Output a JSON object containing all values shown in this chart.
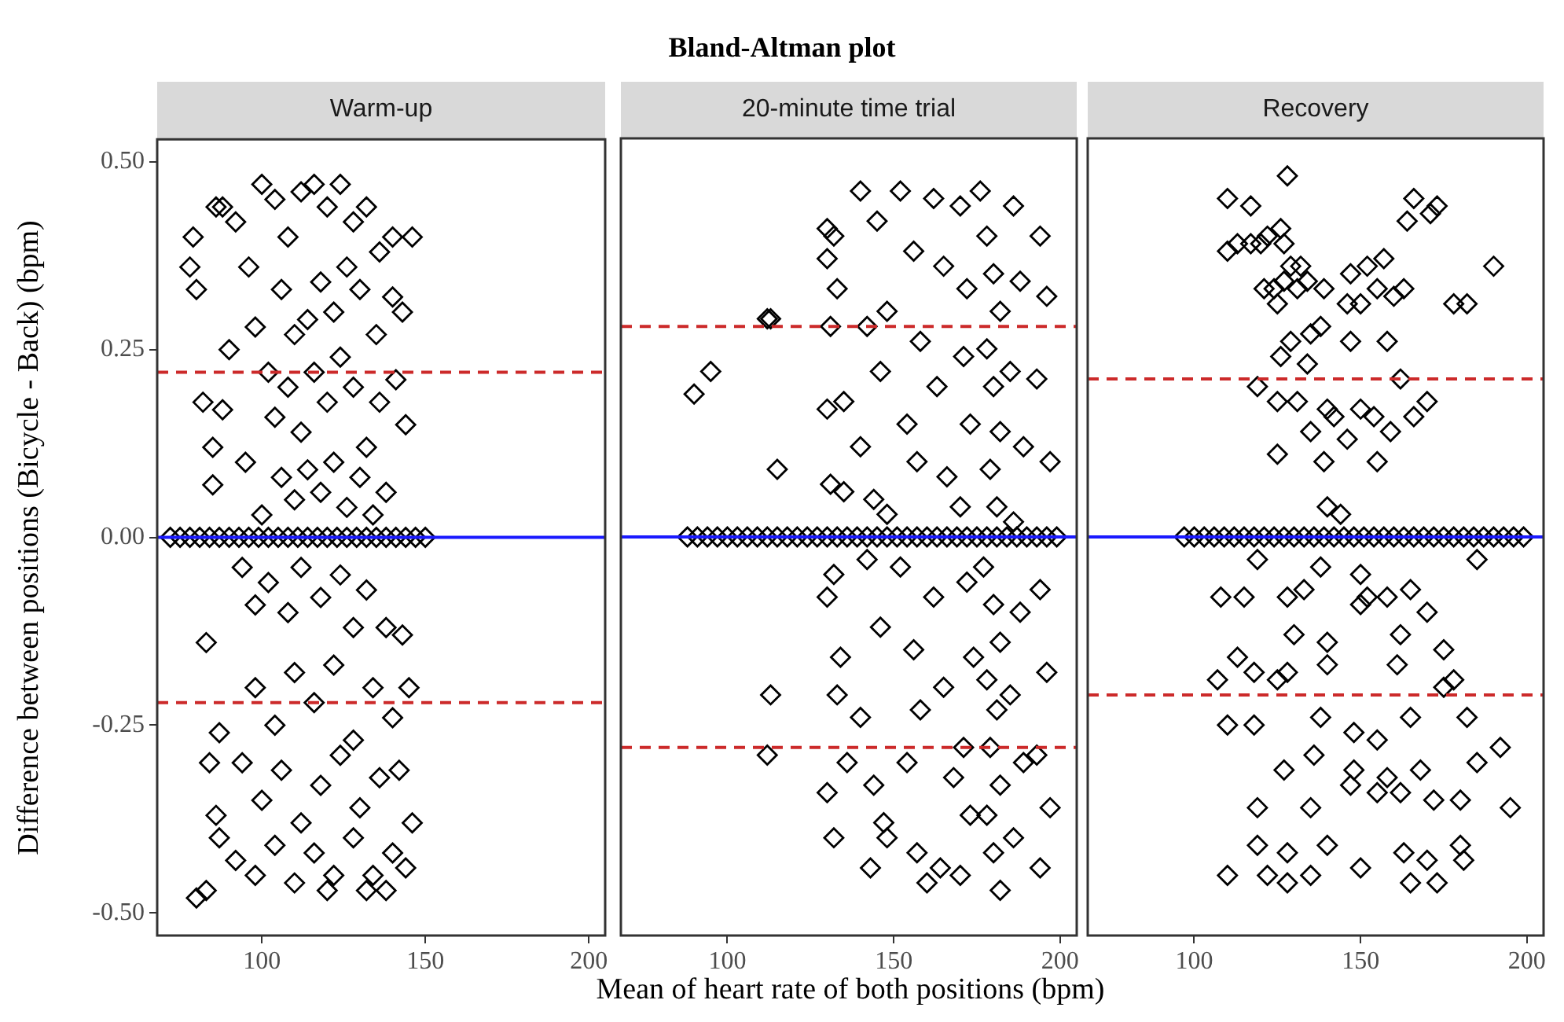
{
  "chart_data": [
    {
      "type": "scatter",
      "subtitle": "Warm-up",
      "ylabel": "Difference between positions (Bicycle - Back) (bpm)",
      "marker": "diamond",
      "xlim": [
        68,
        205
      ],
      "xticks": [
        100,
        150,
        200
      ],
      "ylim": [
        -0.53,
        0.53
      ],
      "yticks": [
        {
          "value": -0.5,
          "label": "-0.50"
        },
        {
          "value": -0.25,
          "label": "-0.25"
        },
        {
          "value": 0,
          "label": "0.00"
        },
        {
          "value": 0.25,
          "label": "0.25"
        },
        {
          "value": 0.5,
          "label": "0.50"
        }
      ],
      "ref_lines": [
        {
          "axis": "y",
          "value": 0.22,
          "color": "#cc2a2a",
          "line_style": "dashed"
        },
        {
          "axis": "y",
          "value": -0.22,
          "color": "#cc2a2a",
          "line_style": "dashed"
        },
        {
          "axis": "y",
          "value": 0,
          "color": "#1a1aff",
          "line_style": "solid"
        }
      ],
      "series": [
        {
          "color": "#000000",
          "x": [
            72,
            75,
            78,
            81,
            84,
            87,
            90,
            93,
            96,
            99,
            102,
            105,
            108,
            111,
            114,
            117,
            120,
            123,
            126,
            129,
            132,
            135,
            138,
            141,
            144,
            147,
            150
          ],
          "values": [
            0,
            0,
            0,
            0,
            0,
            0,
            0,
            0,
            0,
            0,
            0,
            0,
            0,
            0,
            0,
            0,
            0,
            0,
            0,
            0,
            0,
            0,
            0,
            0,
            0,
            0,
            0
          ]
        },
        {
          "color": "#000000",
          "x": [
            80,
            83,
            78,
            80,
            79,
            86,
            88,
            82,
            85,
            83,
            87,
            86,
            84,
            87,
            85,
            90,
            88,
            95,
            92,
            96,
            100,
            104,
            108,
            112,
            116,
            120,
            124,
            128,
            132,
            136,
            140,
            146,
            143,
            140,
            144,
            141,
            135,
            130,
            126,
            122,
            118,
            114,
            110,
            106,
            102,
            98,
            104,
            108,
            112,
            116,
            120,
            124,
            128,
            132,
            136,
            130,
            126,
            122,
            118,
            114,
            110,
            106,
            100,
            138,
            134,
            94,
            98,
            102,
            108,
            112,
            118,
            124,
            128,
            132,
            138,
            143,
            145,
            140,
            134,
            128,
            122,
            116,
            110,
            104,
            98,
            94,
            100,
            106,
            112,
            118,
            124,
            130,
            136,
            142,
            146,
            140,
            134,
            128,
            122,
            116,
            110,
            104,
            98,
            92,
            120,
            132,
            138,
            144
          ],
          "values": [
            -0.48,
            -0.47,
            0.36,
            0.33,
            0.4,
            0.44,
            0.44,
            0.18,
            0.12,
            -0.14,
            -0.4,
            -0.37,
            -0.3,
            -0.26,
            0.07,
            0.25,
            0.17,
            0.1,
            0.42,
            0.36,
            0.47,
            0.45,
            0.4,
            0.46,
            0.47,
            0.44,
            0.47,
            0.42,
            0.44,
            0.38,
            0.4,
            0.4,
            0.3,
            0.32,
            0.15,
            0.21,
            0.27,
            0.33,
            0.36,
            0.3,
            0.34,
            0.29,
            0.27,
            0.33,
            0.22,
            0.28,
            0.16,
            0.2,
            0.14,
            0.22,
            0.18,
            0.24,
            0.2,
            0.12,
            0.18,
            0.08,
            0.04,
            0.1,
            0.06,
            0.09,
            0.05,
            0.08,
            0.03,
            0.06,
            0.03,
            -0.04,
            -0.09,
            -0.06,
            -0.1,
            -0.04,
            -0.08,
            -0.05,
            -0.12,
            -0.07,
            -0.12,
            -0.13,
            -0.2,
            -0.24,
            -0.2,
            -0.27,
            -0.17,
            -0.22,
            -0.18,
            -0.25,
            -0.2,
            -0.3,
            -0.35,
            -0.31,
            -0.38,
            -0.33,
            -0.29,
            -0.36,
            -0.32,
            -0.31,
            -0.38,
            -0.42,
            -0.45,
            -0.4,
            -0.45,
            -0.42,
            -0.46,
            -0.41,
            -0.45,
            -0.43,
            -0.47,
            -0.47,
            -0.47,
            -0.44
          ]
        }
      ]
    },
    {
      "type": "scatter",
      "title": "Bland-Altman plot",
      "subtitle": "20-minute time trial",
      "xlabel": "Mean of heart rate of both positions (bpm)",
      "marker": "diamond",
      "tick_labels": "x",
      "xlim": [
        68,
        205
      ],
      "xticks": [
        100,
        150,
        200
      ],
      "ylim": [
        -0.53,
        0.53
      ],
      "ref_lines": [
        {
          "axis": "y",
          "value": 0.28,
          "color": "#cc2a2a",
          "line_style": "dashed"
        },
        {
          "axis": "y",
          "value": -0.28,
          "color": "#cc2a2a",
          "line_style": "dashed"
        },
        {
          "axis": "y",
          "value": 0,
          "color": "#1a1aff",
          "line_style": "solid"
        }
      ],
      "series": [
        {
          "color": "#000000",
          "x": [
            88,
            91,
            94,
            97,
            100,
            103,
            106,
            109,
            112,
            115,
            118,
            121,
            124,
            127,
            130,
            133,
            136,
            139,
            142,
            145,
            148,
            151,
            154,
            157,
            160,
            163,
            166,
            169,
            172,
            175,
            178,
            181,
            184,
            187,
            190,
            193,
            196,
            199
          ],
          "values": [
            0,
            0,
            0,
            0,
            0,
            0,
            0,
            0,
            0,
            0,
            0,
            0,
            0,
            0,
            0,
            0,
            0,
            0,
            0,
            0,
            0,
            0,
            0,
            0,
            0,
            0,
            0,
            0,
            0,
            0,
            0,
            0,
            0,
            0,
            0,
            0,
            0,
            0
          ]
        },
        {
          "color": "#000000",
          "x": [
            90,
            95,
            112,
            113,
            115,
            113,
            112,
            130,
            132,
            130,
            133,
            131,
            135,
            130,
            131,
            135,
            132,
            130,
            134,
            133,
            130,
            132,
            136,
            140,
            145,
            148,
            142,
            146,
            140,
            144,
            148,
            142,
            146,
            140,
            144,
            148,
            143,
            147,
            152,
            156,
            158,
            154,
            157,
            152,
            156,
            158,
            154,
            157,
            160,
            162,
            165,
            163,
            166,
            162,
            165,
            168,
            164,
            170,
            172,
            171,
            173,
            170,
            172,
            174,
            171,
            173,
            170,
            176,
            178,
            180,
            182,
            178,
            180,
            182,
            179,
            181,
            177,
            180,
            182,
            178,
            181,
            179,
            182,
            178,
            180,
            182,
            186,
            188,
            185,
            189,
            186,
            188,
            185,
            189,
            186,
            194,
            196,
            193,
            197,
            194,
            196,
            193,
            197,
            194
          ],
          "values": [
            0.19,
            0.22,
            0.29,
            0.29,
            0.09,
            -0.21,
            -0.29,
            0.41,
            0.4,
            0.37,
            0.33,
            0.28,
            0.18,
            0.17,
            0.07,
            0.06,
            -0.05,
            -0.08,
            -0.16,
            -0.21,
            -0.34,
            -0.4,
            -0.3,
            0.46,
            0.42,
            0.3,
            0.28,
            0.22,
            0.12,
            0.05,
            0.03,
            -0.03,
            -0.12,
            -0.24,
            -0.33,
            -0.4,
            -0.44,
            -0.38,
            0.46,
            0.38,
            0.26,
            0.15,
            0.1,
            -0.04,
            -0.15,
            -0.23,
            -0.3,
            -0.42,
            -0.46,
            0.45,
            0.36,
            0.2,
            0.08,
            -0.08,
            -0.2,
            -0.32,
            -0.44,
            0.44,
            0.33,
            0.24,
            0.15,
            0.04,
            -0.06,
            -0.16,
            -0.28,
            -0.37,
            -0.45,
            0.46,
            0.4,
            0.35,
            0.3,
            0.25,
            0.2,
            0.14,
            0.09,
            0.04,
            -0.04,
            -0.09,
            -0.14,
            -0.19,
            -0.23,
            -0.28,
            -0.33,
            -0.37,
            -0.42,
            -0.47,
            0.44,
            0.34,
            0.22,
            0.12,
            0.02,
            -0.1,
            -0.21,
            -0.3,
            -0.4,
            0.4,
            0.32,
            0.21,
            0.1,
            -0.07,
            -0.18,
            -0.29,
            -0.36,
            -0.44
          ]
        }
      ]
    },
    {
      "type": "scatter",
      "subtitle": "Recovery",
      "marker": "diamond",
      "tick_labels": "x",
      "xlim": [
        68,
        205
      ],
      "xticks": [
        100,
        150,
        200
      ],
      "ylim": [
        -0.53,
        0.53
      ],
      "ref_lines": [
        {
          "axis": "y",
          "value": 0.21,
          "color": "#cc2a2a",
          "line_style": "dashed"
        },
        {
          "axis": "y",
          "value": -0.21,
          "color": "#cc2a2a",
          "line_style": "dashed"
        },
        {
          "axis": "y",
          "value": 0,
          "color": "#1a1aff",
          "line_style": "solid"
        }
      ],
      "series": [
        {
          "color": "#000000",
          "x": [
            97,
            100,
            103,
            106,
            109,
            112,
            115,
            118,
            121,
            124,
            127,
            130,
            133,
            136,
            139,
            142,
            145,
            148,
            151,
            154,
            157,
            160,
            163,
            166,
            169,
            172,
            175,
            178,
            181,
            184,
            187,
            190,
            193,
            196,
            199
          ],
          "values": [
            0,
            0,
            0,
            0,
            0,
            0,
            0,
            0,
            0,
            0,
            0,
            0,
            0,
            0,
            0,
            0,
            0,
            0,
            0,
            0,
            0,
            0,
            0,
            0,
            0,
            0,
            0,
            0,
            0,
            0,
            0,
            0,
            0,
            0,
            0
          ]
        },
        {
          "color": "#000000",
          "x": [
            110,
            117,
            122,
            126,
            128,
            127,
            129,
            132,
            110,
            113,
            117,
            120,
            121,
            124,
            125,
            127,
            131,
            134,
            139,
            146,
            147,
            150,
            152,
            155,
            157,
            160,
            163,
            164,
            166,
            171,
            173,
            178,
            182,
            190,
            126,
            129,
            134,
            135,
            138,
            147,
            158,
            162,
            119,
            125,
            131,
            135,
            140,
            142,
            146,
            150,
            154,
            159,
            166,
            170,
            125,
            139,
            155,
            140,
            144,
            119,
            138,
            150,
            185,
            150,
            165,
            108,
            115,
            128,
            133,
            152,
            158,
            170,
            130,
            140,
            162,
            175,
            113,
            118,
            125,
            128,
            140,
            161,
            175,
            178,
            107,
            110,
            118,
            138,
            148,
            155,
            165,
            182,
            192,
            127,
            136,
            148,
            158,
            168,
            185,
            119,
            135,
            147,
            155,
            162,
            172,
            180,
            195,
            119,
            128,
            140,
            150,
            163,
            170,
            110,
            122,
            128,
            135,
            165,
            173,
            180,
            181
          ],
          "values": [
            0.45,
            0.44,
            0.4,
            0.41,
            0.48,
            0.39,
            0.36,
            0.36,
            0.38,
            0.39,
            0.39,
            0.39,
            0.33,
            0.33,
            0.31,
            0.34,
            0.33,
            0.34,
            0.33,
            0.31,
            0.35,
            0.31,
            0.36,
            0.33,
            0.37,
            0.32,
            0.33,
            0.42,
            0.45,
            0.43,
            0.44,
            0.31,
            0.31,
            0.36,
            0.24,
            0.26,
            0.23,
            0.27,
            0.28,
            0.26,
            0.26,
            0.21,
            0.2,
            0.18,
            0.18,
            0.14,
            0.17,
            0.16,
            0.13,
            0.17,
            0.16,
            0.14,
            0.16,
            0.18,
            0.11,
            0.1,
            0.1,
            0.04,
            0.03,
            -0.03,
            -0.04,
            -0.05,
            -0.03,
            -0.09,
            -0.07,
            -0.08,
            -0.08,
            -0.08,
            -0.07,
            -0.08,
            -0.08,
            -0.1,
            -0.13,
            -0.14,
            -0.13,
            -0.15,
            -0.16,
            -0.18,
            -0.19,
            -0.18,
            -0.17,
            -0.17,
            -0.2,
            -0.19,
            -0.19,
            -0.25,
            -0.25,
            -0.24,
            -0.26,
            -0.27,
            -0.24,
            -0.24,
            -0.28,
            -0.31,
            -0.29,
            -0.31,
            -0.32,
            -0.31,
            -0.3,
            -0.36,
            -0.36,
            -0.33,
            -0.34,
            -0.34,
            -0.35,
            -0.35,
            -0.36,
            -0.41,
            -0.42,
            -0.41,
            -0.44,
            -0.42,
            -0.43,
            -0.45,
            -0.45,
            -0.46,
            -0.45,
            -0.46,
            -0.46,
            -0.41,
            -0.43
          ]
        }
      ]
    }
  ]
}
